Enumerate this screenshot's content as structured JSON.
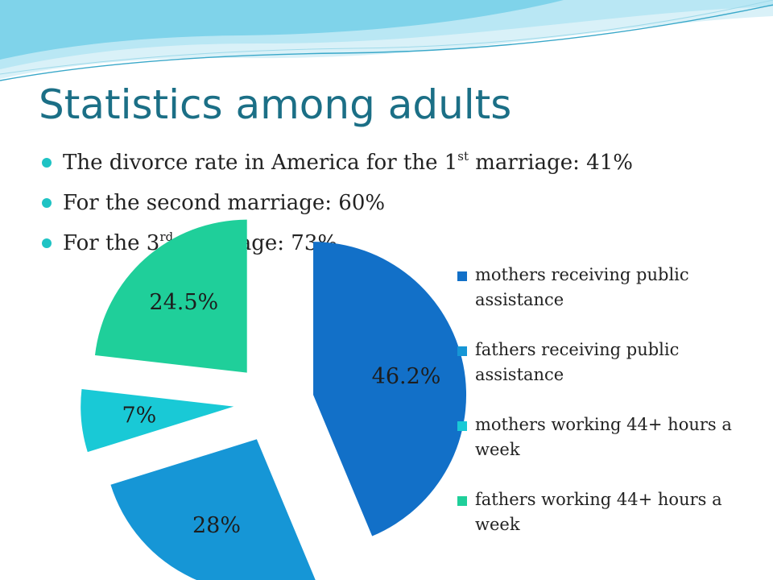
{
  "title": "Statistics among adults",
  "bullets": [
    {
      "pre": "The divorce rate in America for the 1",
      "sup": "st",
      "post": " marriage: 41%"
    },
    {
      "pre": "For the second marriage: 60%",
      "sup": "",
      "post": ""
    },
    {
      "pre": "For the 3",
      "sup": "rd",
      "post": " marriage: 73%"
    }
  ],
  "colors": {
    "title": "#1b6f86",
    "bullet_dot": "#1fc3c4",
    "wave": [
      "#7fd3ea",
      "#b9e7f4",
      "#d9f1f8",
      "#3aa8c9"
    ]
  },
  "chart_data": {
    "type": "pie",
    "exploded": true,
    "categories": [
      "mothers receiving public assistance",
      "fathers receiving public assistance",
      "mothers working 44+ hours a week",
      "fathers working 44+ hours a week"
    ],
    "values": [
      46.2,
      28,
      7,
      24.5
    ],
    "labels": [
      "46.2%",
      "28%",
      "7%",
      "24.5%"
    ],
    "colors": [
      "#1270c8",
      "#1696d6",
      "#19c9d6",
      "#1fcf9a"
    ],
    "legend_position": "right"
  }
}
